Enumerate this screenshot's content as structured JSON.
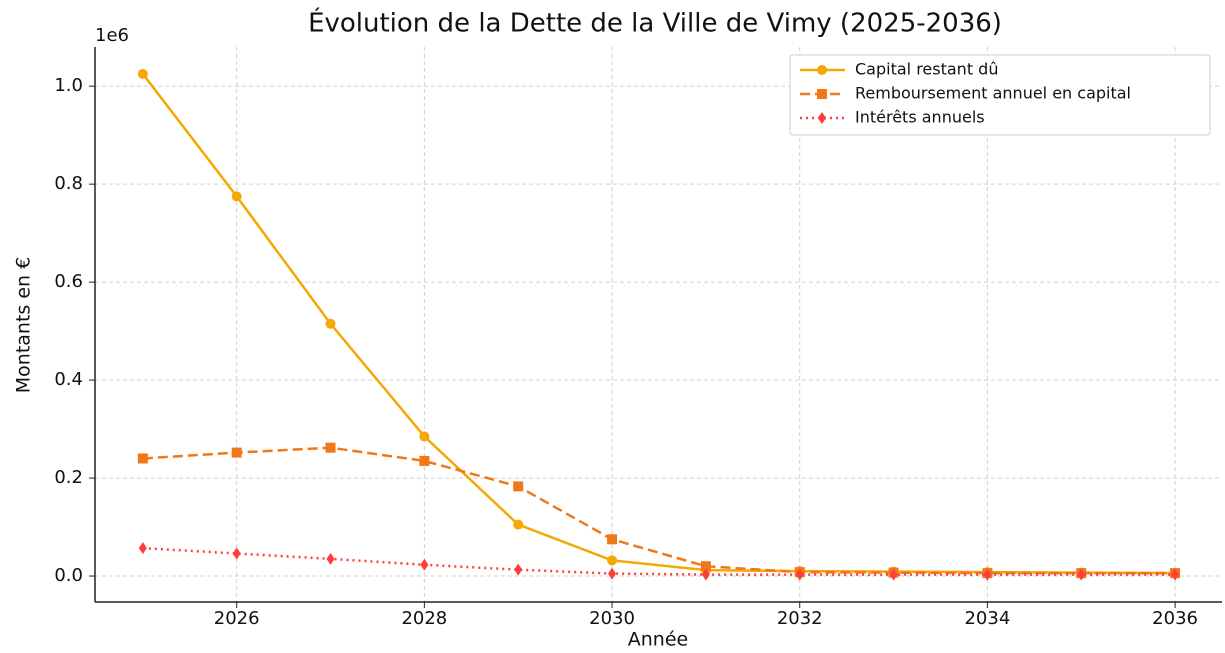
{
  "chart_data": {
    "type": "line",
    "title": "Évolution de la Dette de la Ville de Vimy (2025-2036)",
    "x_label": "Année",
    "y_label": "Montants en €",
    "y_offset_label": "1e6",
    "x": [
      2025,
      2026,
      2027,
      2028,
      2029,
      2030,
      2031,
      2032,
      2033,
      2034,
      2035,
      2036
    ],
    "series": [
      {
        "name": "Capital restant dû",
        "color": "#f5a800",
        "linestyle": "solid",
        "marker": "circle",
        "values": [
          1025000,
          775000,
          515000,
          285000,
          105000,
          32000,
          12000,
          10000,
          9000,
          8000,
          7000,
          6000
        ]
      },
      {
        "name": "Remboursement annuel en capital",
        "color": "#f07818",
        "linestyle": "dashed",
        "marker": "square",
        "values": [
          240000,
          252000,
          262000,
          235000,
          183000,
          75000,
          20000,
          8000,
          7000,
          6000,
          6000,
          6000
        ]
      },
      {
        "name": "Intérêts annuels",
        "color": "#ff3d3d",
        "linestyle": "dotted",
        "marker": "diamond",
        "values": [
          57000,
          46000,
          35000,
          23000,
          13000,
          5000,
          3000,
          3000,
          3000,
          3000,
          3000,
          3000
        ]
      }
    ],
    "xlim": [
      2024.49,
      2036.5
    ],
    "ylim": [
      -53000,
      1080000
    ],
    "xticks": [
      2026,
      2028,
      2030,
      2032,
      2034,
      2036
    ],
    "yticks": [
      {
        "value": 0,
        "label": "0.0"
      },
      {
        "value": 200000,
        "label": "0.2"
      },
      {
        "value": 400000,
        "label": "0.4"
      },
      {
        "value": 600000,
        "label": "0.6"
      },
      {
        "value": 800000,
        "label": "0.8"
      },
      {
        "value": 1000000,
        "label": "1.0"
      }
    ],
    "grid": true,
    "legend": "upper right"
  }
}
